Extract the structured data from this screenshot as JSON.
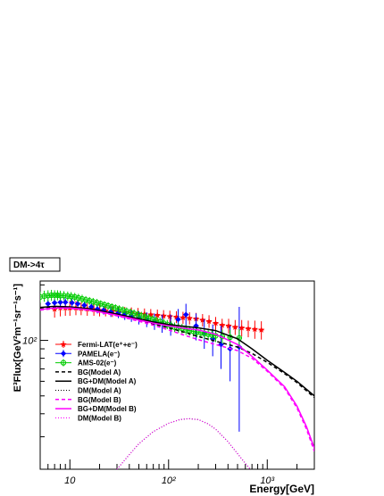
{
  "chart_data": {
    "type": "scatter",
    "title": "DM->4τ",
    "xlabel": "Energy[GeV]",
    "ylabel": "E³Flux[GeV²m⁻¹sr⁻¹s⁻¹]",
    "xscale": "log",
    "yscale": "log",
    "xlim": [
      5,
      3000
    ],
    "ylim": [
      20,
      210
    ],
    "xticks": [
      {
        "value": 10,
        "label": "10"
      },
      {
        "value": 100,
        "label": "10²"
      },
      {
        "value": 1000,
        "label": "10³"
      }
    ],
    "yticks": [
      {
        "value": 100,
        "label": "10²"
      }
    ],
    "legend_position": "left",
    "series": [
      {
        "name": "Fermi-LAT(e⁺+e⁻)",
        "kind": "points",
        "color": "#ff0000",
        "marker": "star",
        "x": [
          7,
          8,
          9,
          10,
          11.5,
          13,
          15,
          17.5,
          20,
          23,
          27,
          31,
          36,
          42,
          49,
          57,
          66,
          77,
          89,
          103,
          120,
          140,
          163,
          190,
          221,
          257,
          300,
          349,
          406,
          473,
          551,
          642,
          748,
          871
        ],
        "y": [
          148,
          150,
          150,
          150,
          150,
          149,
          148,
          147,
          146,
          145,
          144,
          143,
          142,
          141,
          140,
          139,
          138,
          137,
          136,
          135,
          134,
          133,
          132,
          131,
          129,
          127,
          124,
          121,
          120,
          118,
          117,
          116,
          115,
          114
        ],
        "yerr": [
          15,
          15,
          14,
          14,
          13,
          12,
          12,
          11,
          11,
          10,
          10,
          10,
          10,
          10,
          10,
          10,
          10,
          10,
          10,
          10,
          10,
          10,
          10,
          10,
          10,
          10,
          10,
          10,
          11,
          11,
          12,
          12,
          13,
          13
        ]
      },
      {
        "name": "PAMELA(e⁻)",
        "kind": "points",
        "color": "#0000ff",
        "marker": "diamond",
        "x": [
          6,
          7,
          8,
          9,
          10.5,
          12,
          14,
          16.5,
          19,
          22,
          26,
          31,
          36,
          42,
          50,
          60,
          72,
          86,
          105,
          125,
          150,
          190,
          230,
          280,
          340,
          420,
          520
        ],
        "y": [
          158,
          160,
          161,
          161,
          160,
          158,
          155,
          152,
          148,
          146,
          143,
          141,
          139,
          136,
          133,
          130,
          127,
          124,
          122,
          130,
          138,
          120,
          110,
          102,
          95,
          90,
          92
        ],
        "yerr": [
          8,
          8,
          8,
          8,
          8,
          8,
          8,
          8,
          8,
          8,
          9,
          9,
          10,
          10,
          11,
          12,
          13,
          14,
          16,
          18,
          20,
          20,
          20,
          20,
          25,
          30,
          60
        ]
      },
      {
        "name": "AMS-02(e⁻)",
        "kind": "points",
        "color": "#00cc00",
        "marker": "circle",
        "x": [
          5,
          5.5,
          6,
          6.5,
          7,
          7.5,
          8,
          8.7,
          9.5,
          10.3,
          11.2,
          12.2,
          13.3,
          14.5,
          15.8,
          17.2,
          18.8,
          20.5,
          22.4,
          24.4,
          26.6,
          29,
          31.6,
          34.5,
          37.6,
          41,
          44.7,
          48.7,
          53,
          58,
          63,
          69,
          75,
          82,
          89,
          97,
          106,
          115,
          126,
          137,
          150,
          163,
          178,
          194,
          212,
          231,
          252,
          275,
          300,
          350,
          420,
          520
        ],
        "y": [
          172,
          174,
          175,
          176,
          176,
          176,
          175,
          175,
          174,
          173,
          172,
          170,
          168,
          166,
          164,
          162,
          160,
          158,
          156,
          154,
          152,
          150,
          148,
          146,
          144,
          142,
          140,
          138,
          136,
          134,
          132,
          130,
          128,
          126,
          124,
          122,
          120,
          118,
          117,
          116,
          114,
          113,
          112,
          111,
          110,
          109,
          108,
          107,
          106,
          105,
          104,
          103
        ],
        "yerr": [
          12,
          12,
          12,
          12,
          11,
          11,
          11,
          10,
          10,
          10,
          9,
          9,
          9,
          8,
          8,
          8,
          8,
          7,
          7,
          7,
          7,
          7,
          7,
          7,
          7,
          7,
          7,
          7,
          7,
          7,
          7,
          7,
          7,
          7,
          7,
          7,
          7,
          7,
          7,
          7,
          7,
          7,
          7,
          7,
          7,
          7,
          8,
          8,
          8,
          9,
          10,
          12
        ]
      },
      {
        "name": "BG(Model A)",
        "kind": "line",
        "color": "#000000",
        "dash": "4,3",
        "x": [
          5,
          7,
          10,
          15,
          20,
          30,
          50,
          70,
          100,
          150,
          200,
          300,
          500,
          700,
          1000,
          1500,
          2000,
          3000
        ],
        "y": [
          150,
          152,
          151,
          148,
          144,
          138,
          129,
          123,
          117,
          110,
          105,
          99,
          92,
          85,
          76,
          66,
          59,
          49
        ]
      },
      {
        "name": "BG+DM(Model A)",
        "kind": "line",
        "color": "#000000",
        "dash": "",
        "x": [
          5,
          7,
          10,
          15,
          20,
          30,
          50,
          70,
          100,
          150,
          200,
          300,
          500,
          700,
          1000,
          1500,
          2000,
          3000
        ],
        "y": [
          151,
          153,
          152,
          149,
          145,
          139,
          131,
          126,
          122,
          119,
          117,
          113,
          102,
          90,
          78,
          67,
          60,
          50
        ]
      },
      {
        "name": "DM(Model A)",
        "kind": "line",
        "color": "#000000",
        "dash": "1,2",
        "x": [
          30,
          40,
          50,
          70,
          100,
          130,
          160,
          200,
          250,
          300,
          400,
          500,
          600,
          700,
          780
        ],
        "y": [
          20,
          24,
          27.5,
          32,
          35.5,
          37.2,
          37.6,
          37.2,
          35.3,
          33,
          28.2,
          24.3,
          21.5,
          19.5,
          18
        ]
      },
      {
        "name": "BG(Model B)",
        "kind": "line",
        "color": "#ff00ff",
        "dash": "4,3",
        "x": [
          5,
          7,
          10,
          15,
          20,
          30,
          50,
          70,
          100,
          150,
          200,
          300,
          500,
          700,
          1000,
          1500,
          2000,
          2500,
          3000
        ],
        "y": [
          146,
          149,
          149,
          146,
          142,
          136,
          127,
          121,
          114,
          106,
          101,
          95,
          88,
          80,
          68,
          55,
          43,
          33,
          25
        ]
      },
      {
        "name": "BG+DM(Model B)",
        "kind": "line",
        "color": "#ff00ff",
        "dash": "",
        "x": [
          5,
          7,
          10,
          15,
          20,
          30,
          50,
          70,
          100,
          150,
          200,
          300,
          500,
          700,
          1000,
          1500,
          2000,
          2500,
          3000
        ],
        "y": [
          147,
          150,
          150,
          147,
          143,
          137,
          129,
          124,
          120,
          116,
          114,
          108,
          95,
          82,
          69,
          56,
          44,
          34,
          26
        ]
      },
      {
        "name": "DM(Model B)",
        "kind": "line",
        "color": "#ff00ff",
        "dash": "1,2",
        "x": [
          30,
          40,
          50,
          70,
          100,
          130,
          160,
          200,
          250,
          300,
          400,
          500,
          600,
          700,
          780
        ],
        "y": [
          20,
          24,
          27.5,
          32,
          35.5,
          37.2,
          37.6,
          37.2,
          35.3,
          33,
          28.2,
          24.3,
          21.5,
          19.5,
          18
        ]
      }
    ]
  }
}
